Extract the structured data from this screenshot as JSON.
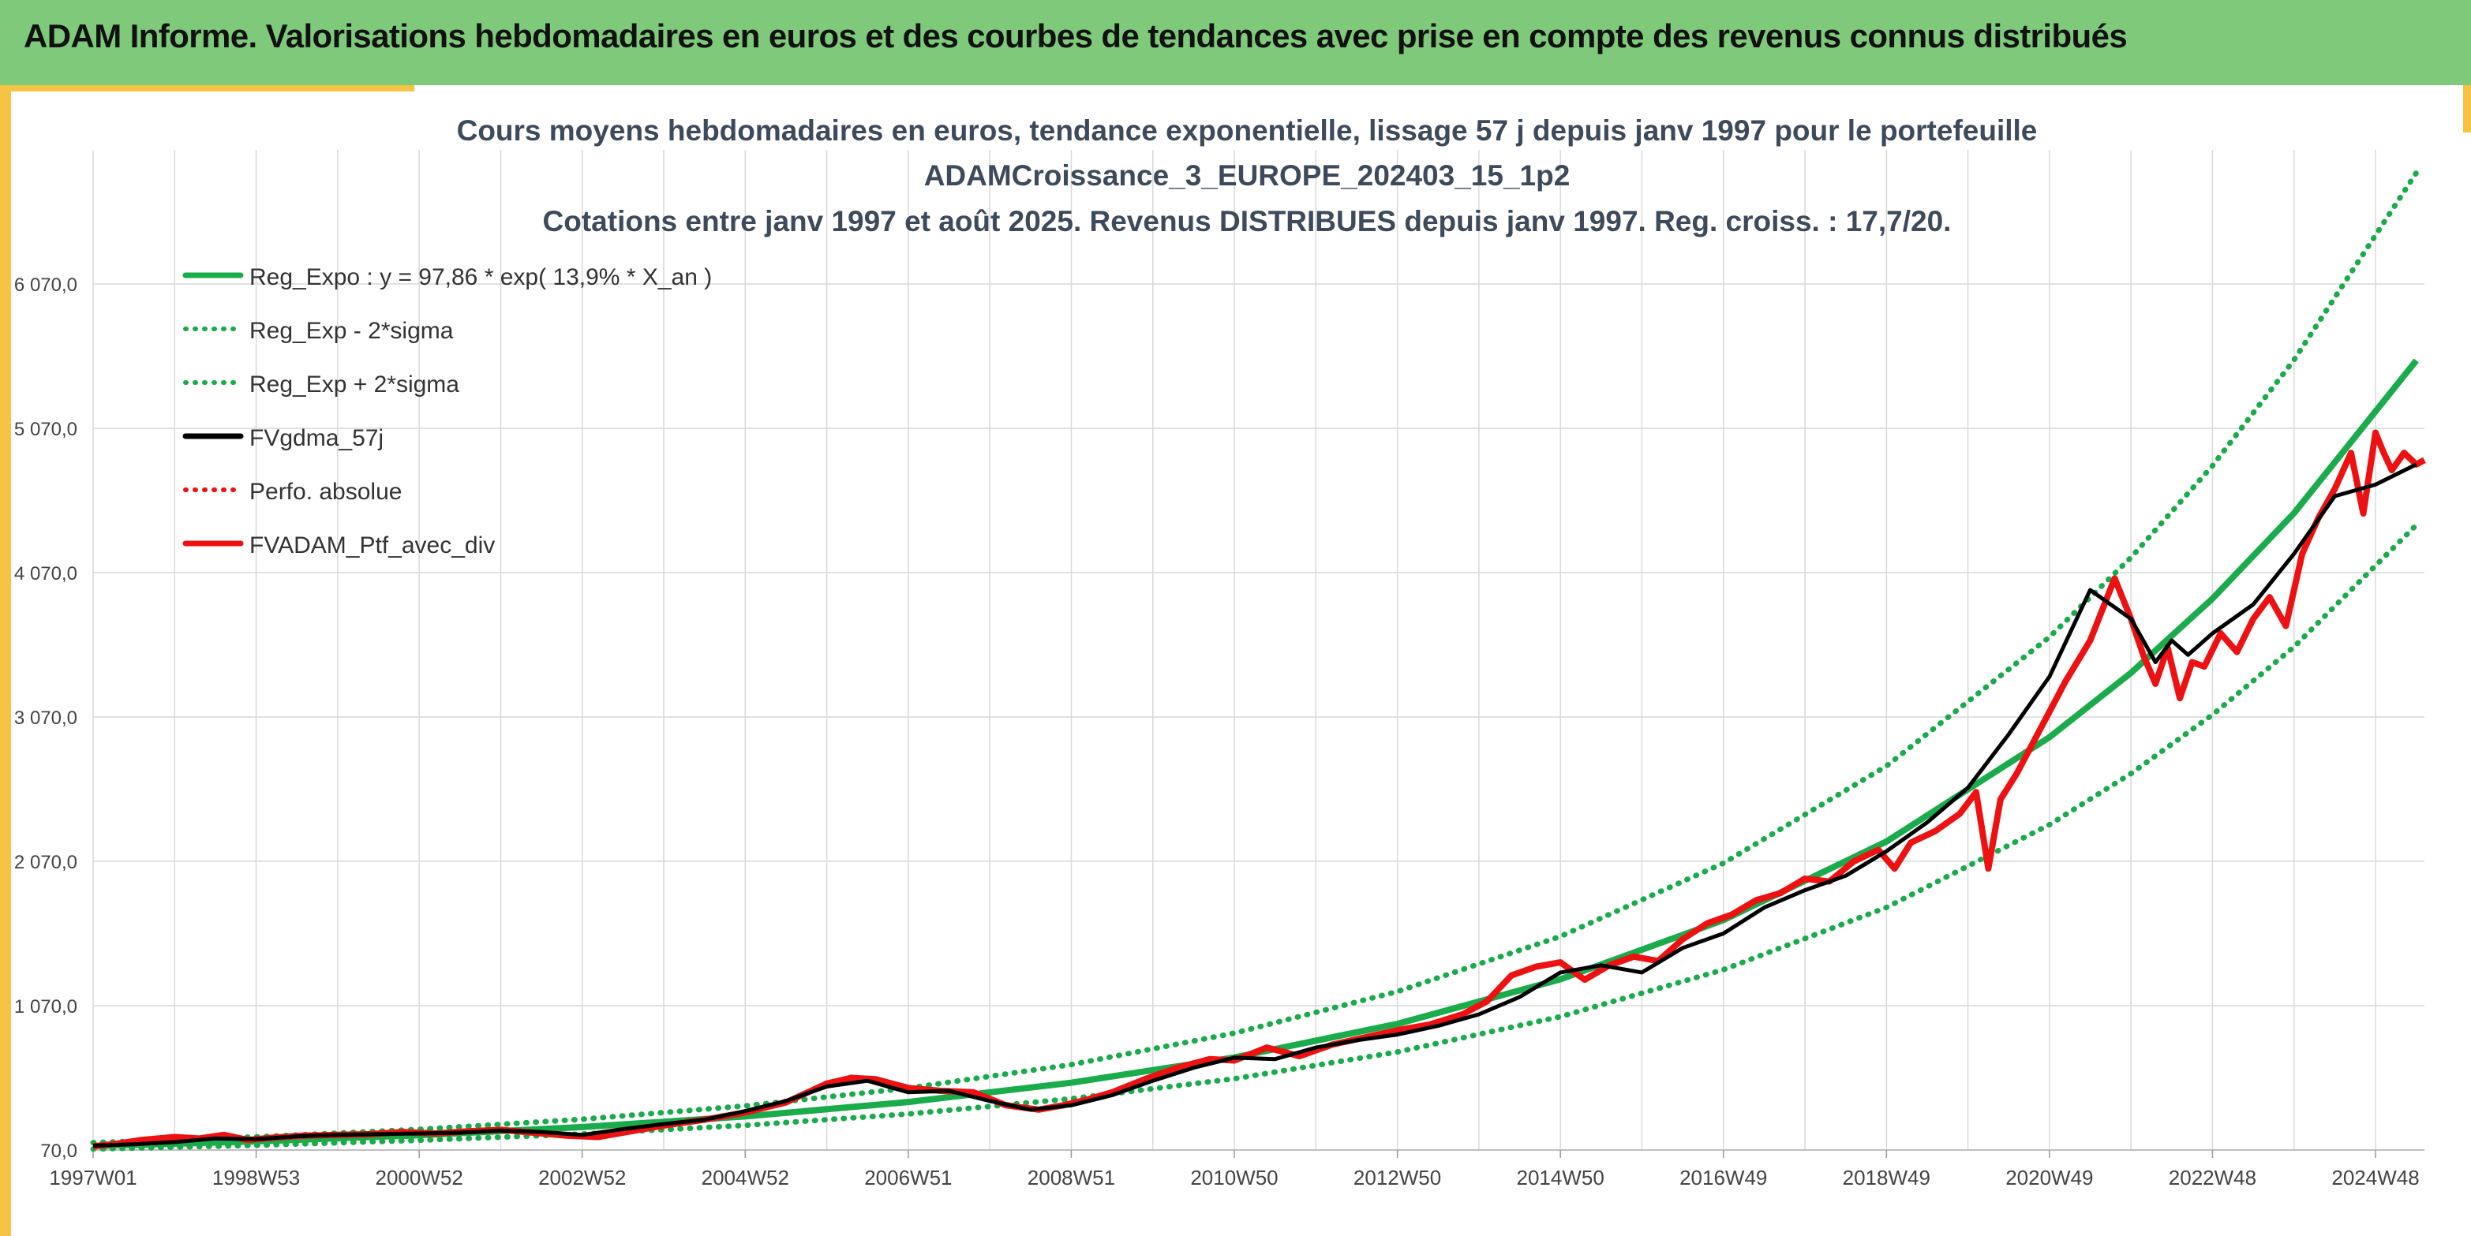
{
  "banner": {
    "title": "ADAM Informe. Valorisations hebdomadaires en euros et des courbes de tendances avec prise en compte des revenus connus distribués"
  },
  "colors": {
    "banner_bg": "#7ec97a",
    "edge_accent": "#f6c343",
    "green": "#1aab4b",
    "black": "#000000",
    "red": "#ee1111",
    "grid": "#d9d9d9"
  },
  "chart_data": {
    "type": "line",
    "title_lines": [
      "Cours moyens hebdomadaires en euros, tendance exponentielle, lissage 57 j depuis janv 1997 pour le portefeuille",
      "ADAMCroissance_3_EUROPE_202403_15_1p2",
      "Cotations entre janv 1997 et août 2025. Revenus DISTRIBUES depuis janv 1997. Reg. croiss. : 17,7/20."
    ],
    "xlabel": "",
    "ylabel": "",
    "x_range": [
      1997.0,
      2025.6
    ],
    "ylim": [
      70,
      6600
    ],
    "y_ticks": [
      70,
      1070,
      2070,
      3070,
      4070,
      5070,
      6070
    ],
    "y_tick_labels": [
      "70,0",
      "1 070,0",
      "2 070,0",
      "3 070,0",
      "4 070,0",
      "5 070,0",
      "6 070,0"
    ],
    "x_ticks": [
      1997.0,
      1999.0,
      2001.0,
      2003.0,
      2005.0,
      2007.0,
      2009.0,
      2011.0,
      2013.0,
      2015.0,
      2017.0,
      2019.0,
      2021.0,
      2023.0,
      2025.0
    ],
    "x_tick_labels": [
      "1997W01",
      "1998W53",
      "2000W52",
      "2002W52",
      "2004W52",
      "2006W51",
      "2008W51",
      "2010W50",
      "2012W50",
      "2014W50",
      "2016W49",
      "2018W49",
      "2020W49",
      "2022W48",
      "2024W48"
    ],
    "vertical_grid_every_year": true,
    "grid": true,
    "legend_position": "top-left",
    "legend": [
      {
        "label": "Reg_Expo : y = 97,86 * exp( 13,9% *  X_an )",
        "color": "#1aab4b",
        "style": "solid"
      },
      {
        "label": "Reg_Exp - 2*sigma",
        "color": "#1aab4b",
        "style": "dotted"
      },
      {
        "label": "Reg_Exp + 2*sigma",
        "color": "#1aab4b",
        "style": "dotted"
      },
      {
        "label": "FVgdma_57j",
        "color": "#000000",
        "style": "solid"
      },
      {
        "label": "Perfo. absolue",
        "color": "#ee1111",
        "style": "dotted"
      },
      {
        "label": "FVADAM_Ptf_avec_div",
        "color": "#ee1111",
        "style": "solid"
      }
    ],
    "series": [
      {
        "name": "Reg_Expo : y = 97,86 * exp( 13,9% *  X_an )",
        "style": "solid",
        "color": "#1aab4b",
        "x": [
          1997.0,
          1999.0,
          2001.0,
          2003.0,
          2005.0,
          2007.0,
          2009.0,
          2011.0,
          2013.0,
          2015.0,
          2017.0,
          2019.0,
          2021.0,
          2022.0,
          2023.0,
          2024.0,
          2025.5
        ],
        "values": [
          98,
          130,
          173,
          229,
          303,
          403,
          536,
          711,
          944,
          1253,
          1663,
          2207,
          2930,
          3376,
          3890,
          4482,
          5540
        ]
      },
      {
        "name": "Reg_Exp - 2*sigma",
        "style": "dotted",
        "color": "#1aab4b",
        "x": [
          1997.0,
          1999.0,
          2001.0,
          2003.0,
          2005.0,
          2007.0,
          2009.0,
          2011.0,
          2013.0,
          2015.0,
          2017.0,
          2019.0,
          2021.0,
          2022.0,
          2023.0,
          2024.0,
          2025.5
        ],
        "values": [
          77,
          103,
          137,
          181,
          241,
          320,
          425,
          564,
          749,
          994,
          1319,
          1751,
          2324,
          2678,
          3086,
          3556,
          4400
        ]
      },
      {
        "name": "Reg_Exp + 2*sigma",
        "style": "dotted",
        "color": "#1aab4b",
        "x": [
          1997.0,
          1999.0,
          2001.0,
          2003.0,
          2005.0,
          2007.0,
          2009.0,
          2011.0,
          2013.0,
          2015.0,
          2017.0,
          2019.0,
          2021.0,
          2022.0,
          2023.0,
          2024.0,
          2025.5
        ],
        "values": [
          121,
          161,
          213,
          283,
          376,
          499,
          662,
          880,
          1168,
          1550,
          2057,
          2730,
          3624,
          4175,
          4811,
          5543,
          6840
        ]
      },
      {
        "name": "FVgdma_57j",
        "style": "solid",
        "color": "#000000",
        "x": [
          1997.0,
          1997.5,
          1998.0,
          1998.5,
          1999.0,
          1999.5,
          2000.0,
          2000.5,
          2001.0,
          2001.5,
          2002.0,
          2002.5,
          2003.0,
          2003.5,
          2004.0,
          2004.5,
          2005.0,
          2005.5,
          2006.0,
          2006.5,
          2007.0,
          2007.5,
          2008.0,
          2008.5,
          2009.0,
          2009.5,
          2010.0,
          2010.5,
          2011.0,
          2011.5,
          2012.0,
          2012.5,
          2013.0,
          2013.5,
          2014.0,
          2014.5,
          2015.0,
          2015.5,
          2016.0,
          2016.5,
          2017.0,
          2017.5,
          2018.0,
          2018.5,
          2019.0,
          2019.5,
          2020.0,
          2020.5,
          2021.0,
          2021.5,
          2022.0,
          2022.3,
          2022.5,
          2022.7,
          2023.0,
          2023.5,
          2024.0,
          2024.5,
          2025.0,
          2025.5
        ],
        "values": [
          100,
          110,
          125,
          150,
          145,
          165,
          175,
          180,
          185,
          190,
          205,
          195,
          175,
          215,
          250,
          280,
          340,
          410,
          510,
          550,
          470,
          480,
          410,
          350,
          380,
          450,
          550,
          640,
          710,
          700,
          780,
          830,
          870,
          930,
          1010,
          1130,
          1300,
          1350,
          1300,
          1470,
          1570,
          1750,
          1870,
          1970,
          2140,
          2340,
          2580,
          2950,
          3350,
          3950,
          3750,
          3450,
          3600,
          3500,
          3650,
          3850,
          4200,
          4600,
          4680,
          4820
        ]
      },
      {
        "name": "Perfo. absolue",
        "style": "dotted",
        "color": "#ee1111",
        "x": [
          1997.0,
          1999.0,
          2001.0,
          2003.0,
          2005.0,
          2007.0,
          2009.0,
          2011.0,
          2013.0,
          2015.0,
          2017.0,
          2019.0,
          2021.0,
          2023.0,
          2025.0
        ],
        "values": [
          100,
          150,
          185,
          180,
          340,
          480,
          380,
          710,
          870,
          1300,
          1570,
          2140,
          3350,
          3650,
          4680
        ]
      },
      {
        "name": "FVADAM_Ptf_avec_div",
        "style": "solid",
        "color": "#ee1111",
        "x": [
          1997.0,
          1997.3,
          1997.6,
          1998.0,
          1998.3,
          1998.6,
          1998.9,
          1999.2,
          1999.6,
          2000.0,
          2000.4,
          2000.8,
          2001.2,
          2001.6,
          2002.0,
          2002.4,
          2002.8,
          2003.2,
          2003.6,
          2004.0,
          2004.5,
          2005.0,
          2005.5,
          2006.0,
          2006.3,
          2006.6,
          2007.0,
          2007.4,
          2007.8,
          2008.2,
          2008.6,
          2008.9,
          2009.2,
          2009.5,
          2009.9,
          2010.3,
          2010.7,
          2011.0,
          2011.4,
          2011.8,
          2012.2,
          2012.6,
          2013.0,
          2013.4,
          2013.8,
          2014.1,
          2014.4,
          2014.7,
          2015.0,
          2015.3,
          2015.6,
          2015.9,
          2016.2,
          2016.5,
          2016.8,
          2017.1,
          2017.4,
          2017.7,
          2018.0,
          2018.3,
          2018.6,
          2018.9,
          2019.1,
          2019.3,
          2019.6,
          2019.9,
          2020.1,
          2020.25,
          2020.4,
          2020.6,
          2020.9,
          2021.2,
          2021.5,
          2021.8,
          2022.0,
          2022.15,
          2022.3,
          2022.45,
          2022.6,
          2022.75,
          2022.9,
          2023.1,
          2023.3,
          2023.5,
          2023.7,
          2023.9,
          2024.1,
          2024.3,
          2024.5,
          2024.7,
          2024.85,
          2025.0,
          2025.1,
          2025.2,
          2025.35,
          2025.5,
          2025.6
        ],
        "values": [
          95,
          115,
          140,
          160,
          150,
          175,
          140,
          155,
          170,
          175,
          180,
          195,
          185,
          200,
          210,
          190,
          170,
          160,
          200,
          240,
          280,
          330,
          400,
          530,
          570,
          560,
          500,
          480,
          470,
          380,
          350,
          380,
          420,
          470,
          560,
          640,
          700,
          690,
          780,
          720,
          800,
          850,
          900,
          940,
          1010,
          1100,
          1280,
          1340,
          1370,
          1250,
          1350,
          1410,
          1380,
          1530,
          1640,
          1700,
          1800,
          1850,
          1950,
          1930,
          2070,
          2150,
          2020,
          2200,
          2280,
          2400,
          2550,
          2020,
          2500,
          2680,
          3000,
          3320,
          3600,
          4030,
          3750,
          3500,
          3300,
          3550,
          3200,
          3450,
          3420,
          3650,
          3520,
          3750,
          3900,
          3700,
          4200,
          4450,
          4650,
          4900,
          4480,
          5040,
          4900,
          4780,
          4900,
          4820,
          4850
        ]
      }
    ]
  }
}
